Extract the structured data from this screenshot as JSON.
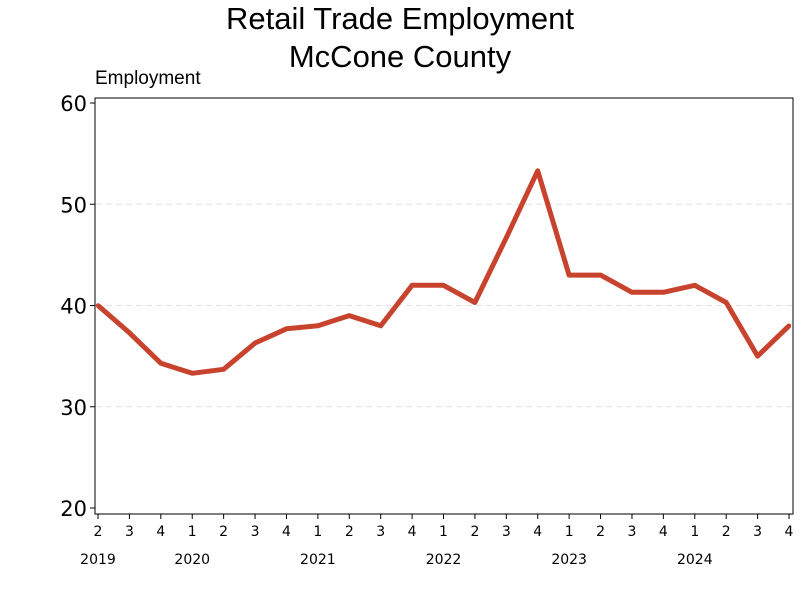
{
  "title_line_1": "Retail Trade Employment",
  "title_line_2": "McCone County",
  "chart_data": {
    "type": "line",
    "title": "Retail Trade Employment McCone County",
    "ylabel": "Employment",
    "xlabel": "",
    "ylim": [
      20,
      60
    ],
    "yticks": [
      20,
      30,
      40,
      50,
      60
    ],
    "grid": "horizontal dashed",
    "line_color": "#c8432e",
    "x": [
      {
        "quarter": "2",
        "year": "2019"
      },
      {
        "quarter": "3",
        "year": "2019"
      },
      {
        "quarter": "4",
        "year": "2019"
      },
      {
        "quarter": "1",
        "year": "2020"
      },
      {
        "quarter": "2",
        "year": "2020"
      },
      {
        "quarter": "3",
        "year": "2020"
      },
      {
        "quarter": "4",
        "year": "2020"
      },
      {
        "quarter": "1",
        "year": "2021"
      },
      {
        "quarter": "2",
        "year": "2021"
      },
      {
        "quarter": "3",
        "year": "2021"
      },
      {
        "quarter": "4",
        "year": "2021"
      },
      {
        "quarter": "1",
        "year": "2022"
      },
      {
        "quarter": "2",
        "year": "2022"
      },
      {
        "quarter": "3",
        "year": "2022"
      },
      {
        "quarter": "4",
        "year": "2022"
      },
      {
        "quarter": "1",
        "year": "2023"
      },
      {
        "quarter": "2",
        "year": "2023"
      },
      {
        "quarter": "3",
        "year": "2023"
      },
      {
        "quarter": "4",
        "year": "2023"
      },
      {
        "quarter": "1",
        "year": "2024"
      },
      {
        "quarter": "2",
        "year": "2024"
      },
      {
        "quarter": "3",
        "year": "2024"
      },
      {
        "quarter": "4",
        "year": "2024"
      }
    ],
    "years": [
      "2019",
      "2020",
      "2021",
      "2022",
      "2023",
      "2024"
    ],
    "series": [
      {
        "values": [
          40,
          37.3,
          34.3,
          33.3,
          33.7,
          36.3,
          37.7,
          38,
          39,
          38,
          42,
          42,
          40.3,
          46.7,
          53.3,
          43,
          43,
          41.3,
          41.3,
          42,
          40.3,
          35,
          38
        ]
      }
    ]
  }
}
